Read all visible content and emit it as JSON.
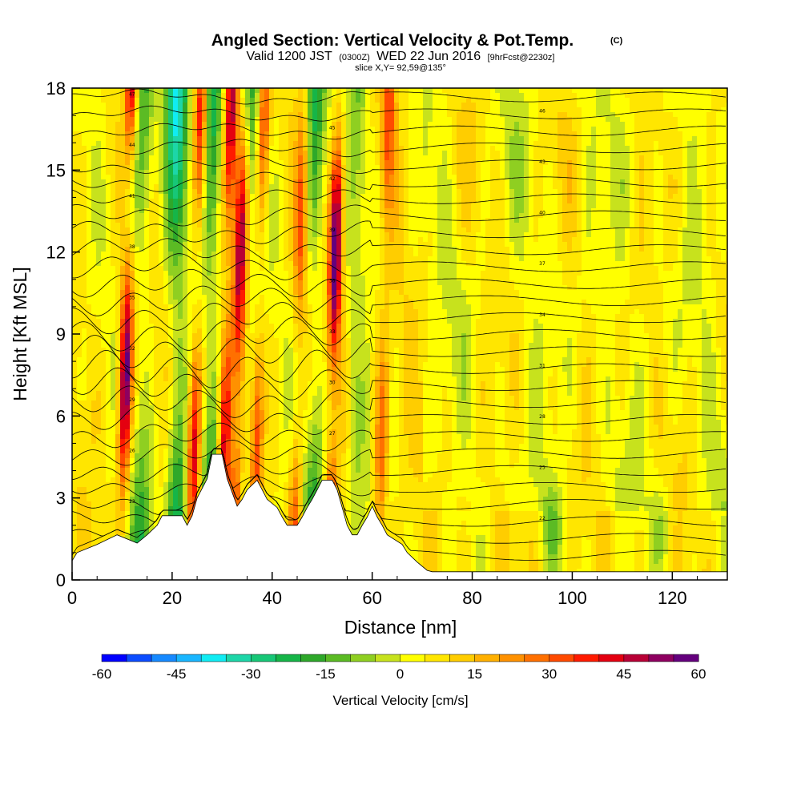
{
  "chart_data": {
    "type": "heatmap",
    "title": "Angled Section: Vertical Velocity & Pot.Temp.",
    "title_units": "(C)",
    "subtitle": {
      "valid_prefix": "Valid 1200 JST",
      "zulu": "(0300Z)",
      "date": "WED 22 Jun 2016",
      "forecast": "[9hrFcst@2230z]"
    },
    "slice_label": "slice X,Y= 92,59@135°",
    "xlabel": "Distance [nm]",
    "ylabel": "Height [Kft MSL]",
    "xlim": [
      0,
      131
    ],
    "ylim": [
      0,
      18
    ],
    "x_ticks": [
      0,
      20,
      40,
      60,
      80,
      100,
      120
    ],
    "y_ticks": [
      0,
      3,
      6,
      9,
      12,
      15,
      18
    ],
    "x_tick_labels": [
      "0",
      "20",
      "40",
      "60",
      "80",
      "100",
      "120"
    ],
    "y_tick_labels": [
      "0",
      "3",
      "6",
      "9",
      "12",
      "15",
      "18"
    ],
    "colorbar": {
      "title": "Vertical Velocity [cm/s]",
      "min": -60,
      "max": 60,
      "step": 5,
      "tick_values": [
        -60,
        -45,
        -30,
        -15,
        0,
        15,
        30,
        45,
        60
      ],
      "tick_labels": [
        "-60",
        "-45",
        "-30",
        "-15",
        "0",
        "15",
        "30",
        "45",
        "60"
      ],
      "colors": [
        "#0000ff",
        "#0b4cff",
        "#1689ff",
        "#19b6ff",
        "#10ecf3",
        "#1dd6a8",
        "#17c777",
        "#16b548",
        "#2ea82a",
        "#5bbb24",
        "#8fcf21",
        "#c7e21d",
        "#ffff00",
        "#ffe600",
        "#ffcd00",
        "#ffb000",
        "#ff9100",
        "#ff7000",
        "#ff4a00",
        "#ff1a00",
        "#e40010",
        "#b80035",
        "#8e0060",
        "#64007d"
      ]
    },
    "updraft_cores": [
      {
        "x": 10.5,
        "peak": 55
      },
      {
        "x": 24.5,
        "peak": 42
      },
      {
        "x": 30.5,
        "peak": 45
      },
      {
        "x": 33,
        "peak": 50
      },
      {
        "x": 37,
        "peak": 35
      },
      {
        "x": 45,
        "peak": 30
      },
      {
        "x": 52,
        "peak": 58
      },
      {
        "x": 62,
        "peak": 25
      }
    ],
    "downdraft_cores": [
      {
        "x": 14,
        "peak": -25
      },
      {
        "x": 21,
        "peak": -40
      },
      {
        "x": 28,
        "peak": -35
      },
      {
        "x": 36,
        "peak": -20
      },
      {
        "x": 48.5,
        "peak": -30
      },
      {
        "x": 57,
        "peak": -15
      },
      {
        "x": 96,
        "peak": -12
      },
      {
        "x": 118,
        "peak": -10
      }
    ],
    "isentrope_labels": [
      "20",
      "21",
      "22",
      "23",
      "24",
      "25",
      "26",
      "27",
      "28",
      "29",
      "30",
      "31",
      "32",
      "33",
      "34",
      "35",
      "36",
      "37",
      "38",
      "39",
      "40",
      "41",
      "42",
      "43",
      "44",
      "45",
      "46",
      "47",
      "48"
    ],
    "terrain_kft": [
      [
        0,
        0.7
      ],
      [
        1,
        1.0
      ],
      [
        5,
        1.3
      ],
      [
        9,
        1.65
      ],
      [
        13,
        1.35
      ],
      [
        15,
        1.65
      ],
      [
        17,
        2.0
      ],
      [
        18,
        2.35
      ],
      [
        22,
        2.35
      ],
      [
        23,
        2.0
      ],
      [
        24,
        2.35
      ],
      [
        25,
        3.0
      ],
      [
        27,
        3.7
      ],
      [
        28,
        4.6
      ],
      [
        30,
        4.6
      ],
      [
        31,
        3.7
      ],
      [
        33,
        2.7
      ],
      [
        34,
        2.95
      ],
      [
        35,
        3.3
      ],
      [
        37,
        3.65
      ],
      [
        38,
        3.3
      ],
      [
        39,
        2.95
      ],
      [
        41,
        2.65
      ],
      [
        42,
        2.3
      ],
      [
        43,
        2.0
      ],
      [
        45,
        2.0
      ],
      [
        46,
        2.3
      ],
      [
        47,
        2.65
      ],
      [
        48,
        2.95
      ],
      [
        49,
        3.3
      ],
      [
        50,
        3.65
      ],
      [
        52,
        3.65
      ],
      [
        53,
        3.3
      ],
      [
        54,
        2.65
      ],
      [
        55,
        2.0
      ],
      [
        56,
        1.65
      ],
      [
        57,
        1.65
      ],
      [
        58,
        2.0
      ],
      [
        59,
        2.3
      ],
      [
        60,
        2.7
      ],
      [
        61,
        2.3
      ],
      [
        62,
        2.0
      ],
      [
        63,
        1.65
      ],
      [
        66,
        1.3
      ],
      [
        67,
        1.0
      ],
      [
        69,
        0.65
      ],
      [
        71,
        0.35
      ],
      [
        72,
        0.3
      ],
      [
        131,
        0.3
      ]
    ]
  }
}
